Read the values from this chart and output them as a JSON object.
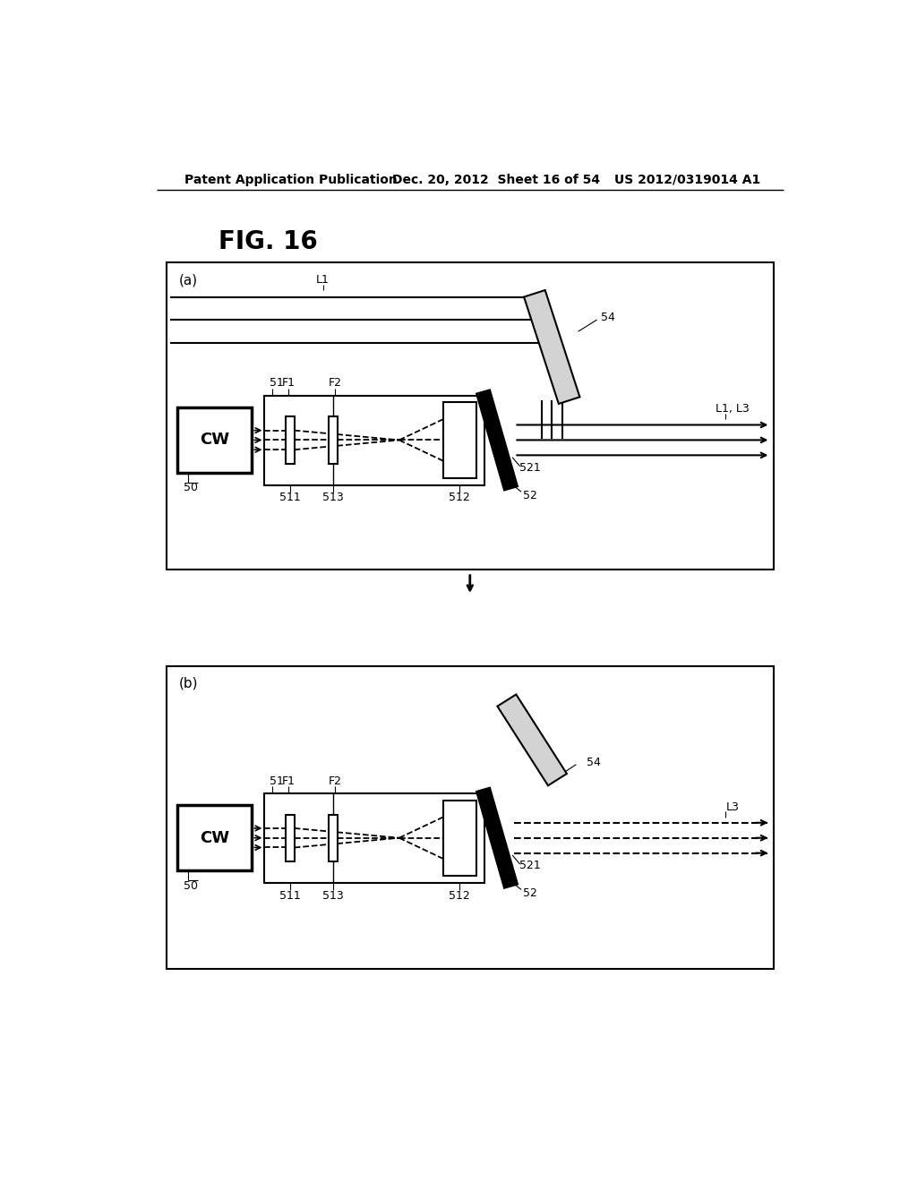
{
  "title_header": "Patent Application Publication",
  "date_header": "Dec. 20, 2012  Sheet 16 of 54",
  "patent_header": "US 2012/0319014 A1",
  "fig_label": "FIG. 16",
  "bg_color": "#ffffff"
}
